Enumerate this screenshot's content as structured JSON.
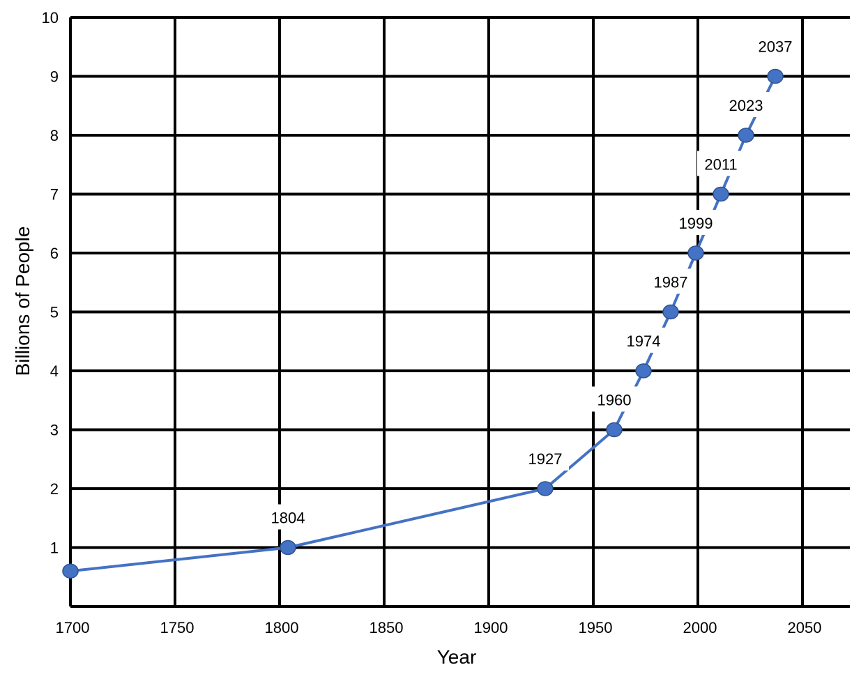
{
  "chart_data": {
    "type": "line",
    "title": "",
    "xlabel": "Year",
    "ylabel": "Billions of People",
    "xlim": [
      1700,
      2070
    ],
    "ylim": [
      0,
      10
    ],
    "x_ticks": [
      1700,
      1750,
      1800,
      1850,
      1900,
      1950,
      2000,
      2050
    ],
    "y_ticks": [
      1,
      2,
      3,
      4,
      5,
      6,
      7,
      8,
      9,
      10
    ],
    "grid": true,
    "legend": "none",
    "series": [
      {
        "color": "#4472C4",
        "marker_color": "#4472C4",
        "points": [
          {
            "x": 1700,
            "y": 0.6,
            "label": ""
          },
          {
            "x": 1804,
            "y": 1,
            "label": "1804"
          },
          {
            "x": 1927,
            "y": 2,
            "label": "1927"
          },
          {
            "x": 1960,
            "y": 3,
            "label": "1960"
          },
          {
            "x": 1974,
            "y": 4,
            "label": "1974"
          },
          {
            "x": 1987,
            "y": 5,
            "label": "1987"
          },
          {
            "x": 1999,
            "y": 6,
            "label": "1999"
          },
          {
            "x": 2011,
            "y": 7,
            "label": "2011"
          },
          {
            "x": 2023,
            "y": 8,
            "label": "2023"
          },
          {
            "x": 2037,
            "y": 9,
            "label": "2037"
          }
        ]
      }
    ]
  }
}
